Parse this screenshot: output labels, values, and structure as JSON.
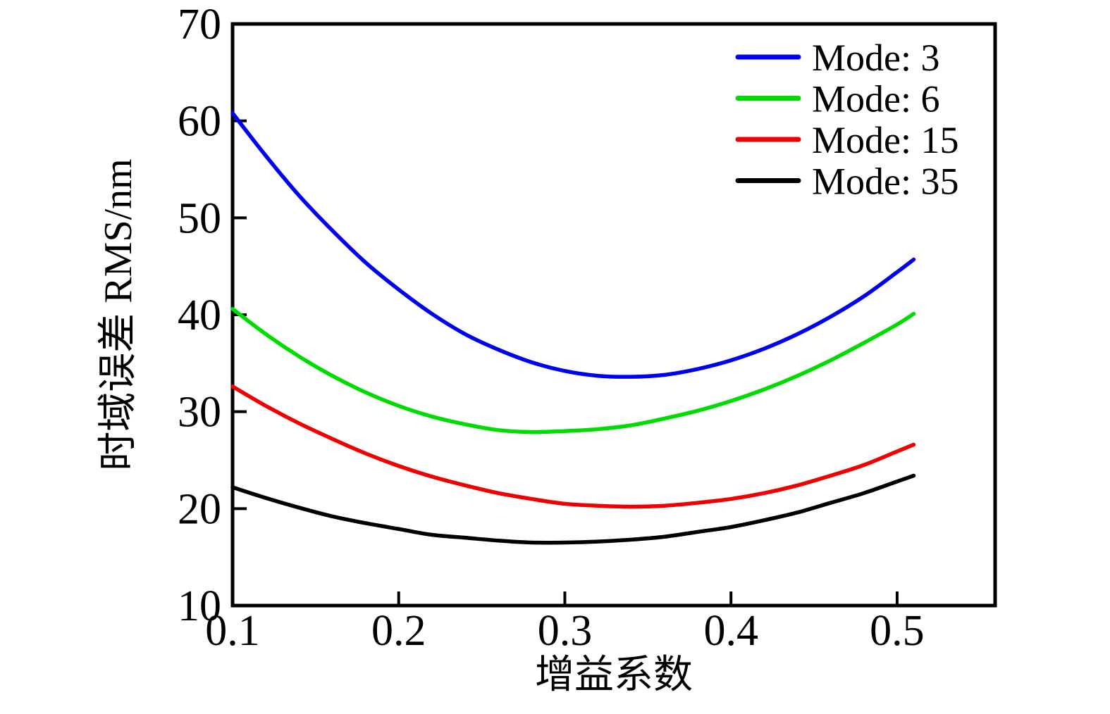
{
  "figure": {
    "background": "#ffffff",
    "frame_color": "#000000"
  },
  "chart_data": {
    "type": "line",
    "title": "",
    "xlabel": "增益系数",
    "ylabel": "时域误差 RMS/nm",
    "xlim": [
      0.1,
      0.559
    ],
    "ylim": [
      10,
      70
    ],
    "grid": false,
    "legend_position": "top-right-inside",
    "x_ticks": [
      0.1,
      0.2,
      0.3,
      0.4,
      0.5
    ],
    "x_tick_labels": [
      "0.1",
      "0.2",
      "0.3",
      "0.4",
      "0.5"
    ],
    "y_ticks": [
      10,
      20,
      30,
      40,
      50,
      60,
      70
    ],
    "y_tick_labels": [
      "10",
      "20",
      "30",
      "40",
      "50",
      "60",
      "70"
    ],
    "x": [
      0.1,
      0.12,
      0.14,
      0.16,
      0.18,
      0.2,
      0.22,
      0.24,
      0.26,
      0.28,
      0.3,
      0.32,
      0.34,
      0.36,
      0.38,
      0.4,
      0.42,
      0.44,
      0.46,
      0.48,
      0.5,
      0.51
    ],
    "series": [
      {
        "name": "Mode: 3",
        "color": "#0000f0",
        "values": [
          60.8,
          56.4,
          52.3,
          48.7,
          45.4,
          42.6,
          40.1,
          38.0,
          36.4,
          35.1,
          34.2,
          33.7,
          33.6,
          33.8,
          34.4,
          35.3,
          36.5,
          38.0,
          39.8,
          41.9,
          44.4,
          45.7
        ]
      },
      {
        "name": "Mode: 6",
        "color": "#00dc00",
        "values": [
          40.6,
          38.0,
          35.7,
          33.7,
          32.0,
          30.6,
          29.5,
          28.7,
          28.1,
          27.9,
          28.0,
          28.2,
          28.6,
          29.3,
          30.1,
          31.1,
          32.3,
          33.7,
          35.3,
          37.1,
          39.0,
          40.1
        ]
      },
      {
        "name": "Mode: 15",
        "color": "#f00000",
        "values": [
          32.6,
          30.6,
          28.8,
          27.2,
          25.7,
          24.4,
          23.3,
          22.4,
          21.6,
          21.0,
          20.5,
          20.3,
          20.2,
          20.3,
          20.6,
          21.0,
          21.6,
          22.4,
          23.4,
          24.5,
          25.9,
          26.6
        ]
      },
      {
        "name": "Mode: 35",
        "color": "#000000",
        "values": [
          22.2,
          21.1,
          20.1,
          19.2,
          18.5,
          17.9,
          17.3,
          17.0,
          16.7,
          16.5,
          16.5,
          16.6,
          16.8,
          17.1,
          17.6,
          18.1,
          18.8,
          19.6,
          20.6,
          21.6,
          22.8,
          23.4
        ]
      }
    ]
  }
}
